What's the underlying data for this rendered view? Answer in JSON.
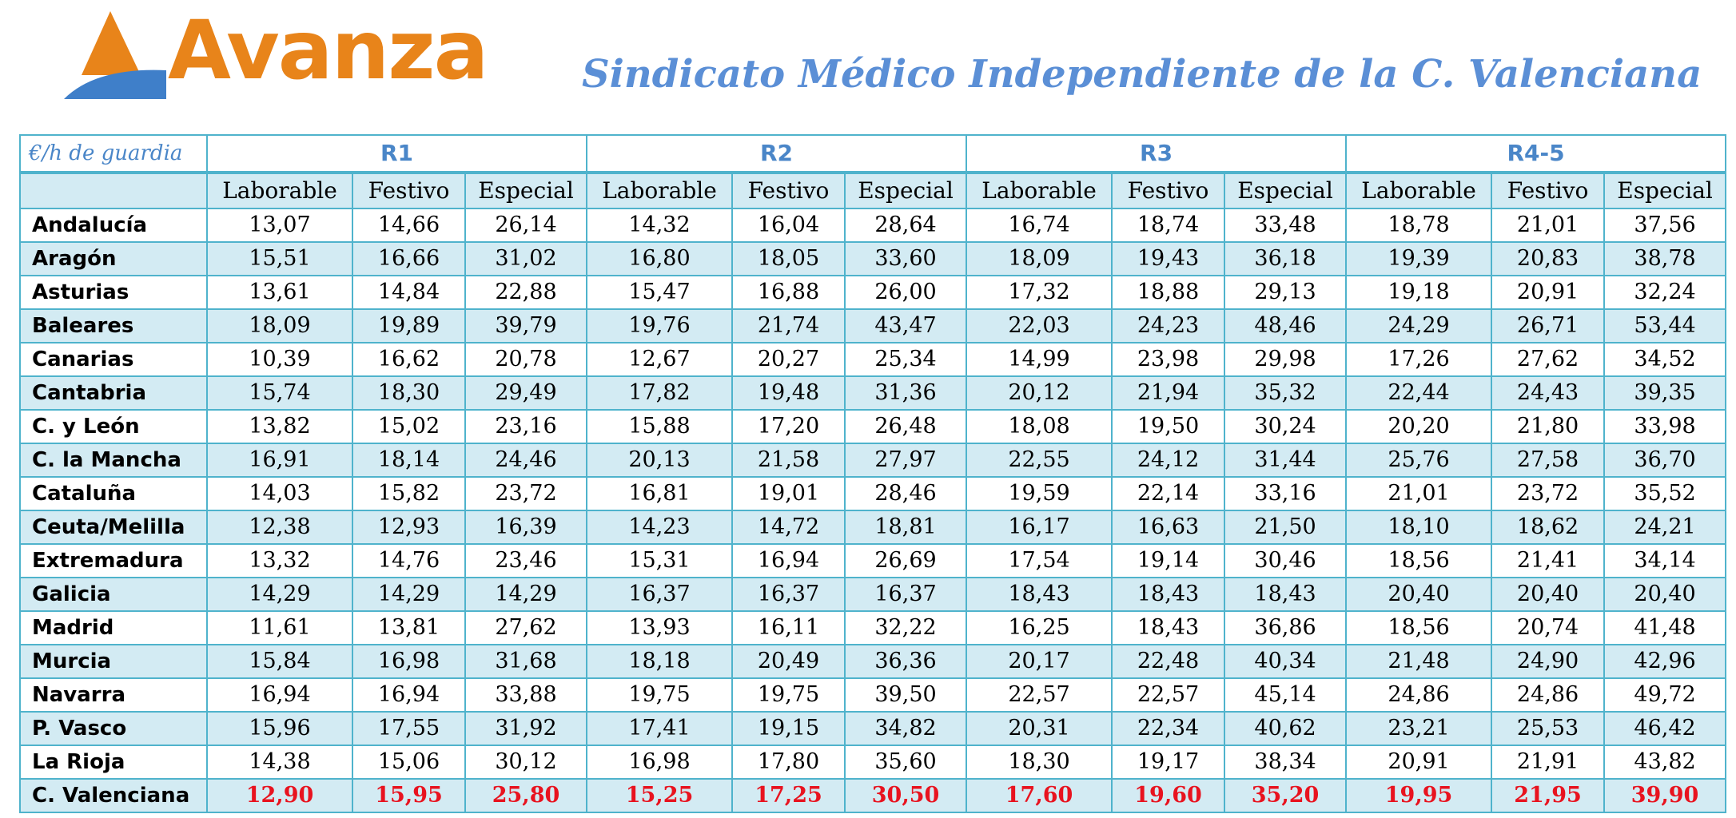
{
  "header": {
    "logo_text": "Avanza",
    "title": "Sindicato Médico Independiente de la C. Valenciana"
  },
  "colors": {
    "logo_orange": "#e8841a",
    "logo_blue": "#3f7fc9",
    "title_blue": "#5b8fd6",
    "border": "#4fb3cc",
    "shade": "#d3ebf3",
    "highlight_red": "#e8131f"
  },
  "table": {
    "corner_label": "€/h de guardia",
    "groups": [
      "R1",
      "R2",
      "R3",
      "R4-5"
    ],
    "subheaders": [
      "Laborable",
      "Festivo",
      "Especial",
      "Laborable",
      "Festivo",
      "Especial",
      "Laborable",
      "Festivo",
      "Especial",
      "Laborable",
      "Festivo",
      "Especial"
    ],
    "rows": [
      {
        "region": "Andalucía",
        "values": [
          "13,07",
          "14,66",
          "26,14",
          "14,32",
          "16,04",
          "28,64",
          "16,74",
          "18,74",
          "33,48",
          "18,78",
          "21,01",
          "37,56"
        ]
      },
      {
        "region": "Aragón",
        "values": [
          "15,51",
          "16,66",
          "31,02",
          "16,80",
          "18,05",
          "33,60",
          "18,09",
          "19,43",
          "36,18",
          "19,39",
          "20,83",
          "38,78"
        ]
      },
      {
        "region": "Asturias",
        "values": [
          "13,61",
          "14,84",
          "22,88",
          "15,47",
          "16,88",
          "26,00",
          "17,32",
          "18,88",
          "29,13",
          "19,18",
          "20,91",
          "32,24"
        ]
      },
      {
        "region": "Baleares",
        "values": [
          "18,09",
          "19,89",
          "39,79",
          "19,76",
          "21,74",
          "43,47",
          "22,03",
          "24,23",
          "48,46",
          "24,29",
          "26,71",
          "53,44"
        ]
      },
      {
        "region": "Canarias",
        "values": [
          "10,39",
          "16,62",
          "20,78",
          "12,67",
          "20,27",
          "25,34",
          "14,99",
          "23,98",
          "29,98",
          "17,26",
          "27,62",
          "34,52"
        ]
      },
      {
        "region": "Cantabria",
        "values": [
          "15,74",
          "18,30",
          "29,49",
          "17,82",
          "19,48",
          "31,36",
          "20,12",
          "21,94",
          "35,32",
          "22,44",
          "24,43",
          "39,35"
        ]
      },
      {
        "region": "C. y León",
        "values": [
          "13,82",
          "15,02",
          "23,16",
          "15,88",
          "17,20",
          "26,48",
          "18,08",
          "19,50",
          "30,24",
          "20,20",
          "21,80",
          "33,98"
        ]
      },
      {
        "region": "C. la Mancha",
        "values": [
          "16,91",
          "18,14",
          "24,46",
          "20,13",
          "21,58",
          "27,97",
          "22,55",
          "24,12",
          "31,44",
          "25,76",
          "27,58",
          "36,70"
        ]
      },
      {
        "region": "Cataluña",
        "values": [
          "14,03",
          "15,82",
          "23,72",
          "16,81",
          "19,01",
          "28,46",
          "19,59",
          "22,14",
          "33,16",
          "21,01",
          "23,72",
          "35,52"
        ]
      },
      {
        "region": "Ceuta/Melilla",
        "values": [
          "12,38",
          "12,93",
          "16,39",
          "14,23",
          "14,72",
          "18,81",
          "16,17",
          "16,63",
          "21,50",
          "18,10",
          "18,62",
          "24,21"
        ]
      },
      {
        "region": "Extremadura",
        "values": [
          "13,32",
          "14,76",
          "23,46",
          "15,31",
          "16,94",
          "26,69",
          "17,54",
          "19,14",
          "30,46",
          "18,56",
          "21,41",
          "34,14"
        ]
      },
      {
        "region": "Galicia",
        "values": [
          "14,29",
          "14,29",
          "14,29",
          "16,37",
          "16,37",
          "16,37",
          "18,43",
          "18,43",
          "18,43",
          "20,40",
          "20,40",
          "20,40"
        ]
      },
      {
        "region": "Madrid",
        "values": [
          "11,61",
          "13,81",
          "27,62",
          "13,93",
          "16,11",
          "32,22",
          "16,25",
          "18,43",
          "36,86",
          "18,56",
          "20,74",
          "41,48"
        ]
      },
      {
        "region": "Murcia",
        "values": [
          "15,84",
          "16,98",
          "31,68",
          "18,18",
          "20,49",
          "36,36",
          "20,17",
          "22,48",
          "40,34",
          "21,48",
          "24,90",
          "42,96"
        ]
      },
      {
        "region": "Navarra",
        "values": [
          "16,94",
          "16,94",
          "33,88",
          "19,75",
          "19,75",
          "39,50",
          "22,57",
          "22,57",
          "45,14",
          "24,86",
          "24,86",
          "49,72"
        ]
      },
      {
        "region": "P. Vasco",
        "values": [
          "15,96",
          "17,55",
          "31,92",
          "17,41",
          "19,15",
          "34,82",
          "20,31",
          "22,34",
          "40,62",
          "23,21",
          "25,53",
          "46,42"
        ]
      },
      {
        "region": "La Rioja",
        "values": [
          "14,38",
          "15,06",
          "30,12",
          "16,98",
          "17,80",
          "35,60",
          "18,30",
          "19,17",
          "38,34",
          "20,91",
          "21,91",
          "43,82"
        ]
      },
      {
        "region": "C. Valenciana",
        "values": [
          "12,90",
          "15,95",
          "25,80",
          "15,25",
          "17,25",
          "30,50",
          "17,60",
          "19,60",
          "35,20",
          "19,95",
          "21,95",
          "39,90"
        ]
      }
    ]
  }
}
